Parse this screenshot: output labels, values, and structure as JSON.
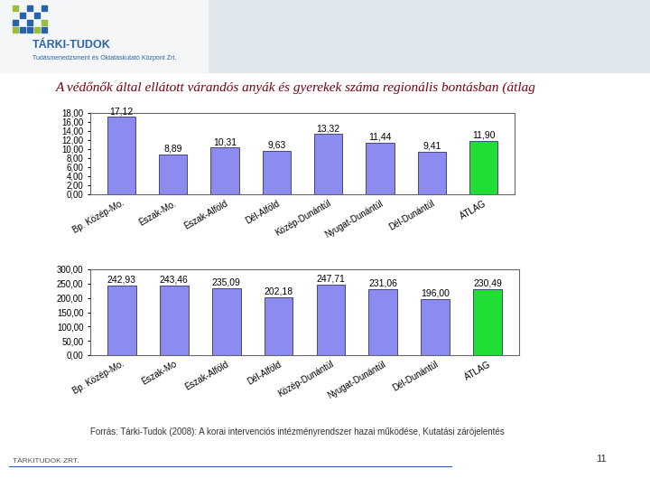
{
  "logo": {
    "name": "TÁRKI-TUDOK",
    "subtitle": "Tudásmenedzsment és Oktatáskutató Központ Zrt."
  },
  "title": "A védőnők által ellátott várandós anyák és gyerekek száma regionális bontásban (átlag",
  "source": "Forrás: Tárki-Tudok (2008): A korai intervenciós intézményrendszer hazai működése, Kutatási zárójelentés",
  "footer": "TÁRKITUDOK ZRT.",
  "page": "11",
  "chart_data": [
    {
      "type": "bar",
      "categories": [
        "Bp. Közép-Mo.",
        "Észak-Mo.",
        "Észak-Alföld",
        "Dél-Alföld",
        "Közép-Dunántúl",
        "Nyugat-Dunántúl",
        "Dél-Dunántúl",
        "ÁTLAG"
      ],
      "values": [
        17.12,
        8.89,
        10.31,
        9.63,
        13.32,
        11.44,
        9.41,
        11.9
      ],
      "value_labels": [
        "17,12",
        "8,89",
        "10,31",
        "9,63",
        "13,32",
        "11,44",
        "9,41",
        "11,90"
      ],
      "colors": [
        "#8c8cf0",
        "#8c8cf0",
        "#8c8cf0",
        "#8c8cf0",
        "#8c8cf0",
        "#8c8cf0",
        "#8c8cf0",
        "#22dd33"
      ],
      "ylim": [
        0,
        18
      ],
      "yticks": [
        {
          "value": 0,
          "label": "0,00"
        },
        {
          "value": 2,
          "label": "2,00"
        },
        {
          "value": 4,
          "label": "4,00"
        },
        {
          "value": 6,
          "label": "6,00"
        },
        {
          "value": 8,
          "label": "8,00"
        },
        {
          "value": 10,
          "label": "10,00"
        },
        {
          "value": 12,
          "label": "12,00"
        },
        {
          "value": 14,
          "label": "14,00"
        },
        {
          "value": 16,
          "label": "16,00"
        },
        {
          "value": 18,
          "label": "18,00"
        }
      ],
      "grid": false,
      "data_labels": true
    },
    {
      "type": "bar",
      "categories": [
        "Bp. Közép-Mo.",
        "Észak-Mo",
        "Észak-Alföld",
        "Dél-Alföld",
        "Közép-Dunántúl",
        "Nyugat-Dunántúl",
        "Dél-Dunántúl",
        "ÁTLAG"
      ],
      "values": [
        242.93,
        243.46,
        235.09,
        202.18,
        247.71,
        231.06,
        196.0,
        230.49
      ],
      "value_labels": [
        "242,93",
        "243,46",
        "235,09",
        "202,18",
        "247,71",
        "231,06",
        "196,00",
        "230,49"
      ],
      "colors": [
        "#8c8cf0",
        "#8c8cf0",
        "#8c8cf0",
        "#8c8cf0",
        "#8c8cf0",
        "#8c8cf0",
        "#8c8cf0",
        "#22dd33"
      ],
      "ylim": [
        0,
        300
      ],
      "yticks": [
        {
          "value": 0,
          "label": "0,00"
        },
        {
          "value": 50,
          "label": "50,00"
        },
        {
          "value": 100,
          "label": "100,00"
        },
        {
          "value": 150,
          "label": "150,00"
        },
        {
          "value": 200,
          "label": "200,00"
        },
        {
          "value": 250,
          "label": "250,00"
        },
        {
          "value": 300,
          "label": "300,00"
        }
      ],
      "grid": false,
      "data_labels": true
    }
  ]
}
